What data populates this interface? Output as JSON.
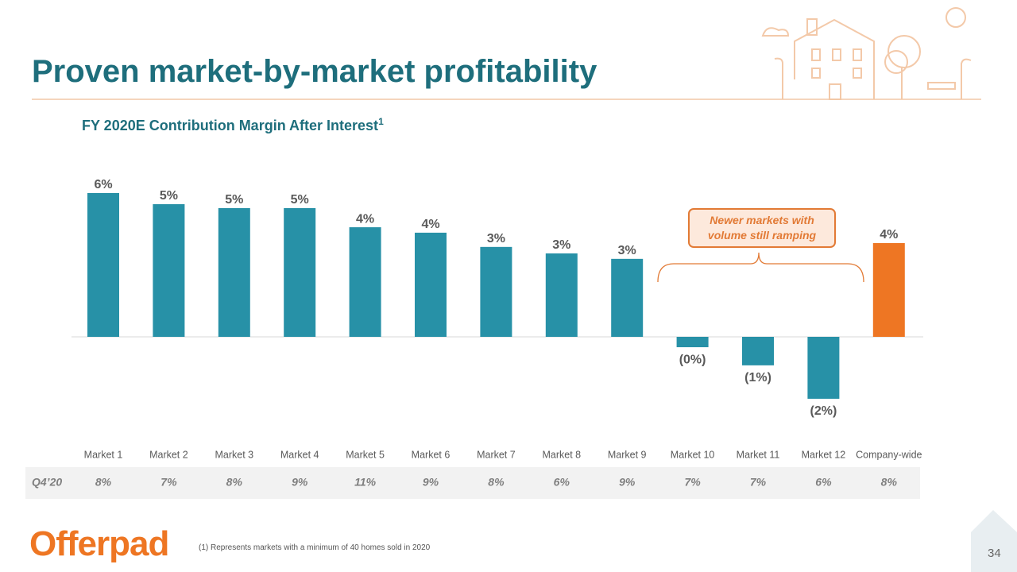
{
  "header": {
    "title": "Proven market-by-market profitability"
  },
  "chart_data": {
    "type": "bar",
    "title": "FY 2020E Contribution Margin After Interest",
    "title_note": "1",
    "categories": [
      "Market 1",
      "Market 2",
      "Market 3",
      "Market 4",
      "Market 5",
      "Market 6",
      "Market 7",
      "Market 8",
      "Market 9",
      "Market 10",
      "Market 11",
      "Market 12",
      "Company-wide"
    ],
    "values": [
      5.55,
      5.12,
      4.97,
      4.97,
      4.23,
      4.02,
      3.47,
      3.22,
      3.01,
      -0.4,
      -1.1,
      -2.39,
      3.62
    ],
    "value_labels": [
      "6%",
      "5%",
      "5%",
      "5%",
      "4%",
      "4%",
      "3%",
      "3%",
      "3%",
      "(0%)",
      "(1%)",
      "(2%)",
      "4%"
    ],
    "colors": [
      "#2791a7",
      "#2791a7",
      "#2791a7",
      "#2791a7",
      "#2791a7",
      "#2791a7",
      "#2791a7",
      "#2791a7",
      "#2791a7",
      "#2791a7",
      "#2791a7",
      "#2791a7",
      "#ee7623"
    ],
    "annotation": "Newer markets with volume still ramping"
  },
  "table": {
    "row_label": "Q4’20",
    "cells": [
      "8%",
      "7%",
      "8%",
      "9%",
      "11%",
      "9%",
      "8%",
      "6%",
      "9%",
      "7%",
      "7%",
      "6%",
      "8%"
    ]
  },
  "footnote": "(1) Represents markets with a minimum of 40 homes sold in 2020",
  "logo": "Offerpad",
  "page_number": 34
}
